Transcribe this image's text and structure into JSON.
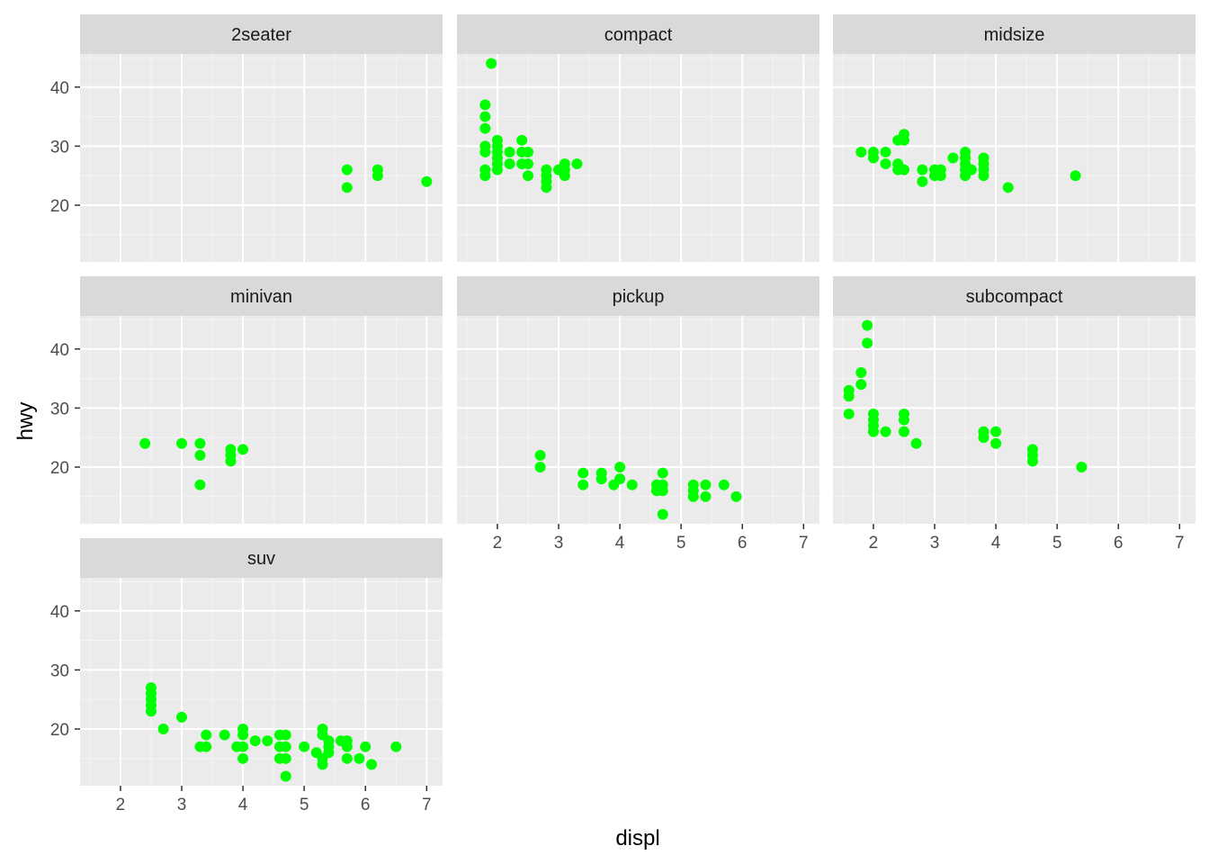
{
  "chart_data": {
    "type": "scatter",
    "facet_layout": "wrap 3 columns",
    "xlabel": "displ",
    "ylabel": "hwy",
    "xlim": [
      1.34,
      7.26
    ],
    "ylim": [
      10.4,
      45.6
    ],
    "x_ticks": [
      2,
      3,
      4,
      5,
      6,
      7
    ],
    "y_ticks": [
      20,
      30,
      40
    ],
    "point_color": "#00ff00",
    "panel_background": "#ebebeb",
    "strip_background": "#d9d9d9",
    "grid": true,
    "facets": [
      {
        "label": "2seater",
        "points": [
          [
            5.7,
            26
          ],
          [
            5.7,
            23
          ],
          [
            6.2,
            26
          ],
          [
            6.2,
            25
          ],
          [
            7.0,
            24
          ]
        ]
      },
      {
        "label": "compact",
        "points": [
          [
            1.8,
            37
          ],
          [
            1.8,
            35
          ],
          [
            1.8,
            33
          ],
          [
            1.8,
            30
          ],
          [
            1.8,
            29
          ],
          [
            1.8,
            26
          ],
          [
            1.8,
            25
          ],
          [
            1.9,
            44
          ],
          [
            2.0,
            31
          ],
          [
            2.0,
            30
          ],
          [
            2.0,
            29
          ],
          [
            2.0,
            28
          ],
          [
            2.0,
            27
          ],
          [
            2.0,
            26
          ],
          [
            2.2,
            29
          ],
          [
            2.2,
            27
          ],
          [
            2.4,
            31
          ],
          [
            2.4,
            29
          ],
          [
            2.4,
            27
          ],
          [
            2.5,
            29
          ],
          [
            2.5,
            27
          ],
          [
            2.5,
            25
          ],
          [
            2.8,
            26
          ],
          [
            2.8,
            25
          ],
          [
            2.8,
            24
          ],
          [
            2.8,
            23
          ],
          [
            3.0,
            26
          ],
          [
            3.1,
            27
          ],
          [
            3.1,
            26
          ],
          [
            3.1,
            25
          ],
          [
            3.3,
            27
          ]
        ]
      },
      {
        "label": "midsize",
        "points": [
          [
            1.8,
            29
          ],
          [
            2.0,
            29
          ],
          [
            2.0,
            28
          ],
          [
            2.2,
            29
          ],
          [
            2.2,
            27
          ],
          [
            2.4,
            31
          ],
          [
            2.4,
            27
          ],
          [
            2.4,
            26
          ],
          [
            2.5,
            32
          ],
          [
            2.5,
            31
          ],
          [
            2.5,
            26
          ],
          [
            2.8,
            26
          ],
          [
            2.8,
            24
          ],
          [
            3.0,
            26
          ],
          [
            3.0,
            25
          ],
          [
            3.1,
            26
          ],
          [
            3.1,
            25
          ],
          [
            3.3,
            28
          ],
          [
            3.5,
            29
          ],
          [
            3.5,
            28
          ],
          [
            3.5,
            27
          ],
          [
            3.5,
            26
          ],
          [
            3.5,
            25
          ],
          [
            3.6,
            26
          ],
          [
            3.8,
            28
          ],
          [
            3.8,
            27
          ],
          [
            3.8,
            26
          ],
          [
            3.8,
            25
          ],
          [
            4.2,
            23
          ],
          [
            5.3,
            25
          ]
        ]
      },
      {
        "label": "minivan",
        "points": [
          [
            2.4,
            24
          ],
          [
            3.0,
            24
          ],
          [
            3.3,
            24
          ],
          [
            3.3,
            22
          ],
          [
            3.3,
            17
          ],
          [
            3.8,
            23
          ],
          [
            3.8,
            22
          ],
          [
            3.8,
            21
          ],
          [
            4.0,
            23
          ]
        ]
      },
      {
        "label": "pickup",
        "points": [
          [
            2.7,
            22
          ],
          [
            2.7,
            20
          ],
          [
            3.4,
            19
          ],
          [
            3.4,
            17
          ],
          [
            3.7,
            19
          ],
          [
            3.7,
            18
          ],
          [
            3.9,
            17
          ],
          [
            4.0,
            20
          ],
          [
            4.0,
            18
          ],
          [
            4.2,
            17
          ],
          [
            4.6,
            17
          ],
          [
            4.6,
            16
          ],
          [
            4.7,
            19
          ],
          [
            4.7,
            17
          ],
          [
            4.7,
            16
          ],
          [
            4.7,
            12
          ],
          [
            5.2,
            17
          ],
          [
            5.2,
            16
          ],
          [
            5.2,
            15
          ],
          [
            5.4,
            17
          ],
          [
            5.4,
            15
          ],
          [
            5.7,
            17
          ],
          [
            5.9,
            15
          ]
        ]
      },
      {
        "label": "subcompact",
        "points": [
          [
            1.6,
            33
          ],
          [
            1.6,
            32
          ],
          [
            1.6,
            29
          ],
          [
            1.8,
            36
          ],
          [
            1.8,
            34
          ],
          [
            1.9,
            44
          ],
          [
            1.9,
            41
          ],
          [
            2.0,
            29
          ],
          [
            2.0,
            28
          ],
          [
            2.0,
            27
          ],
          [
            2.0,
            26
          ],
          [
            2.2,
            26
          ],
          [
            2.5,
            29
          ],
          [
            2.5,
            28
          ],
          [
            2.5,
            26
          ],
          [
            2.7,
            24
          ],
          [
            3.8,
            26
          ],
          [
            3.8,
            25
          ],
          [
            4.0,
            26
          ],
          [
            4.0,
            24
          ],
          [
            4.6,
            23
          ],
          [
            4.6,
            22
          ],
          [
            4.6,
            21
          ],
          [
            5.4,
            20
          ]
        ]
      },
      {
        "label": "suv",
        "points": [
          [
            2.5,
            27
          ],
          [
            2.5,
            26
          ],
          [
            2.5,
            25
          ],
          [
            2.5,
            24
          ],
          [
            2.5,
            23
          ],
          [
            2.7,
            20
          ],
          [
            3.0,
            22
          ],
          [
            3.3,
            17
          ],
          [
            3.4,
            19
          ],
          [
            3.4,
            17
          ],
          [
            3.7,
            19
          ],
          [
            3.9,
            17
          ],
          [
            4.0,
            20
          ],
          [
            4.0,
            19
          ],
          [
            4.0,
            17
          ],
          [
            4.0,
            15
          ],
          [
            4.2,
            18
          ],
          [
            4.4,
            18
          ],
          [
            4.6,
            19
          ],
          [
            4.6,
            17
          ],
          [
            4.6,
            15
          ],
          [
            4.7,
            19
          ],
          [
            4.7,
            17
          ],
          [
            4.7,
            15
          ],
          [
            4.7,
            12
          ],
          [
            5.0,
            17
          ],
          [
            5.2,
            16
          ],
          [
            5.3,
            20
          ],
          [
            5.3,
            19
          ],
          [
            5.3,
            15
          ],
          [
            5.3,
            14
          ],
          [
            5.4,
            18
          ],
          [
            5.4,
            17
          ],
          [
            5.4,
            16
          ],
          [
            5.6,
            18
          ],
          [
            5.7,
            18
          ],
          [
            5.7,
            17
          ],
          [
            5.7,
            15
          ],
          [
            5.9,
            15
          ],
          [
            6.0,
            17
          ],
          [
            6.1,
            14
          ],
          [
            6.5,
            17
          ]
        ]
      }
    ]
  }
}
